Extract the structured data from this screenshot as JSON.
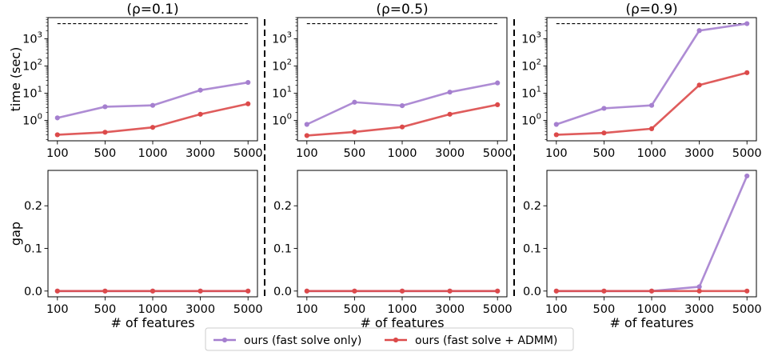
{
  "colors": {
    "series_fast": "#a57fcf",
    "series_admm": "#dc4a4a",
    "reference_line": "#000000",
    "separator": "#000000"
  },
  "chart_data": [
    {
      "type": "line",
      "panel": "top-left",
      "title": "(ρ=0.1)",
      "xlabel": "",
      "ylabel": "time (sec)",
      "yscale": "log",
      "categories": [
        "100",
        "500",
        "1000",
        "3000",
        "5000"
      ],
      "ylim": [
        0.18,
        6000
      ],
      "yticks": [
        {
          "v": 1,
          "base": "10",
          "exp": "0"
        },
        {
          "v": 10,
          "base": "10",
          "exp": "1"
        },
        {
          "v": 100,
          "base": "10",
          "exp": "2"
        },
        {
          "v": 1000,
          "base": "10",
          "exp": "3"
        }
      ],
      "reference_line": 3600,
      "series": [
        {
          "name": "ours (fast solve only)",
          "values": [
            1.25,
            3.2,
            3.6,
            13,
            25
          ]
        },
        {
          "name": "ours (fast solve + ADMM)",
          "values": [
            0.3,
            0.37,
            0.56,
            1.7,
            4.1
          ]
        }
      ]
    },
    {
      "type": "line",
      "panel": "top-middle",
      "title": "(ρ=0.5)",
      "xlabel": "",
      "ylabel": "",
      "yscale": "log",
      "categories": [
        "100",
        "500",
        "1000",
        "3000",
        "5000"
      ],
      "ylim": [
        0.18,
        6000
      ],
      "yticks": [
        {
          "v": 1,
          "base": "10",
          "exp": "0"
        },
        {
          "v": 10,
          "base": "10",
          "exp": "1"
        },
        {
          "v": 100,
          "base": "10",
          "exp": "2"
        },
        {
          "v": 1000,
          "base": "10",
          "exp": "3"
        }
      ],
      "reference_line": 3600,
      "series": [
        {
          "name": "ours (fast solve only)",
          "values": [
            0.72,
            4.7,
            3.5,
            11,
            24
          ]
        },
        {
          "name": "ours (fast solve + ADMM)",
          "values": [
            0.28,
            0.38,
            0.58,
            1.7,
            3.8
          ]
        }
      ]
    },
    {
      "type": "line",
      "panel": "top-right",
      "title": "(ρ=0.9)",
      "xlabel": "",
      "ylabel": "",
      "yscale": "log",
      "categories": [
        "100",
        "500",
        "1000",
        "3000",
        "5000"
      ],
      "ylim": [
        0.18,
        6000
      ],
      "yticks": [
        {
          "v": 1,
          "base": "10",
          "exp": "0"
        },
        {
          "v": 10,
          "base": "10",
          "exp": "1"
        },
        {
          "v": 100,
          "base": "10",
          "exp": "2"
        },
        {
          "v": 1000,
          "base": "10",
          "exp": "3"
        }
      ],
      "reference_line": 3600,
      "series": [
        {
          "name": "ours (fast solve only)",
          "values": [
            0.72,
            2.8,
            3.6,
            2000,
            3600
          ]
        },
        {
          "name": "ours (fast solve + ADMM)",
          "values": [
            0.3,
            0.35,
            0.5,
            20,
            57
          ]
        }
      ]
    },
    {
      "type": "line",
      "panel": "bottom-left",
      "title": "",
      "xlabel": "# of features",
      "ylabel": "gap",
      "yscale": "linear",
      "categories": [
        "100",
        "500",
        "1000",
        "3000",
        "5000"
      ],
      "ylim": [
        -0.0135,
        0.283
      ],
      "yticks": [
        {
          "v": 0,
          "label": "0.0"
        },
        {
          "v": 0.1,
          "label": "0.1"
        },
        {
          "v": 0.2,
          "label": "0.2"
        }
      ],
      "series": [
        {
          "name": "ours (fast solve only)",
          "values": [
            0,
            0,
            0,
            0,
            0
          ]
        },
        {
          "name": "ours (fast solve + ADMM)",
          "values": [
            0,
            0,
            0,
            0,
            0
          ]
        }
      ]
    },
    {
      "type": "line",
      "panel": "bottom-middle",
      "title": "",
      "xlabel": "# of features",
      "ylabel": "",
      "yscale": "linear",
      "categories": [
        "100",
        "500",
        "1000",
        "3000",
        "5000"
      ],
      "ylim": [
        -0.0135,
        0.283
      ],
      "yticks": [
        {
          "v": 0,
          "label": "0.0"
        },
        {
          "v": 0.1,
          "label": "0.1"
        },
        {
          "v": 0.2,
          "label": "0.2"
        }
      ],
      "series": [
        {
          "name": "ours (fast solve only)",
          "values": [
            0,
            0,
            0,
            0,
            0
          ]
        },
        {
          "name": "ours (fast solve + ADMM)",
          "values": [
            0,
            0,
            0,
            0,
            0
          ]
        }
      ]
    },
    {
      "type": "line",
      "panel": "bottom-right",
      "title": "",
      "xlabel": "# of features",
      "ylabel": "",
      "yscale": "linear",
      "categories": [
        "100",
        "500",
        "1000",
        "3000",
        "5000"
      ],
      "ylim": [
        -0.0135,
        0.283
      ],
      "yticks": [
        {
          "v": 0,
          "label": "0.0"
        },
        {
          "v": 0.1,
          "label": "0.1"
        },
        {
          "v": 0.2,
          "label": "0.2"
        }
      ],
      "series": [
        {
          "name": "ours (fast solve only)",
          "values": [
            0,
            0,
            0,
            0.01,
            0.27
          ]
        },
        {
          "name": "ours (fast solve + ADMM)",
          "values": [
            0,
            0,
            0,
            0,
            0
          ]
        }
      ]
    }
  ],
  "legend": {
    "placement": "bottom-center",
    "entries": [
      {
        "label": "ours (fast solve only)",
        "color": "#a57fcf"
      },
      {
        "label": "ours (fast solve + ADMM)",
        "color": "#dc4a4a"
      }
    ]
  }
}
